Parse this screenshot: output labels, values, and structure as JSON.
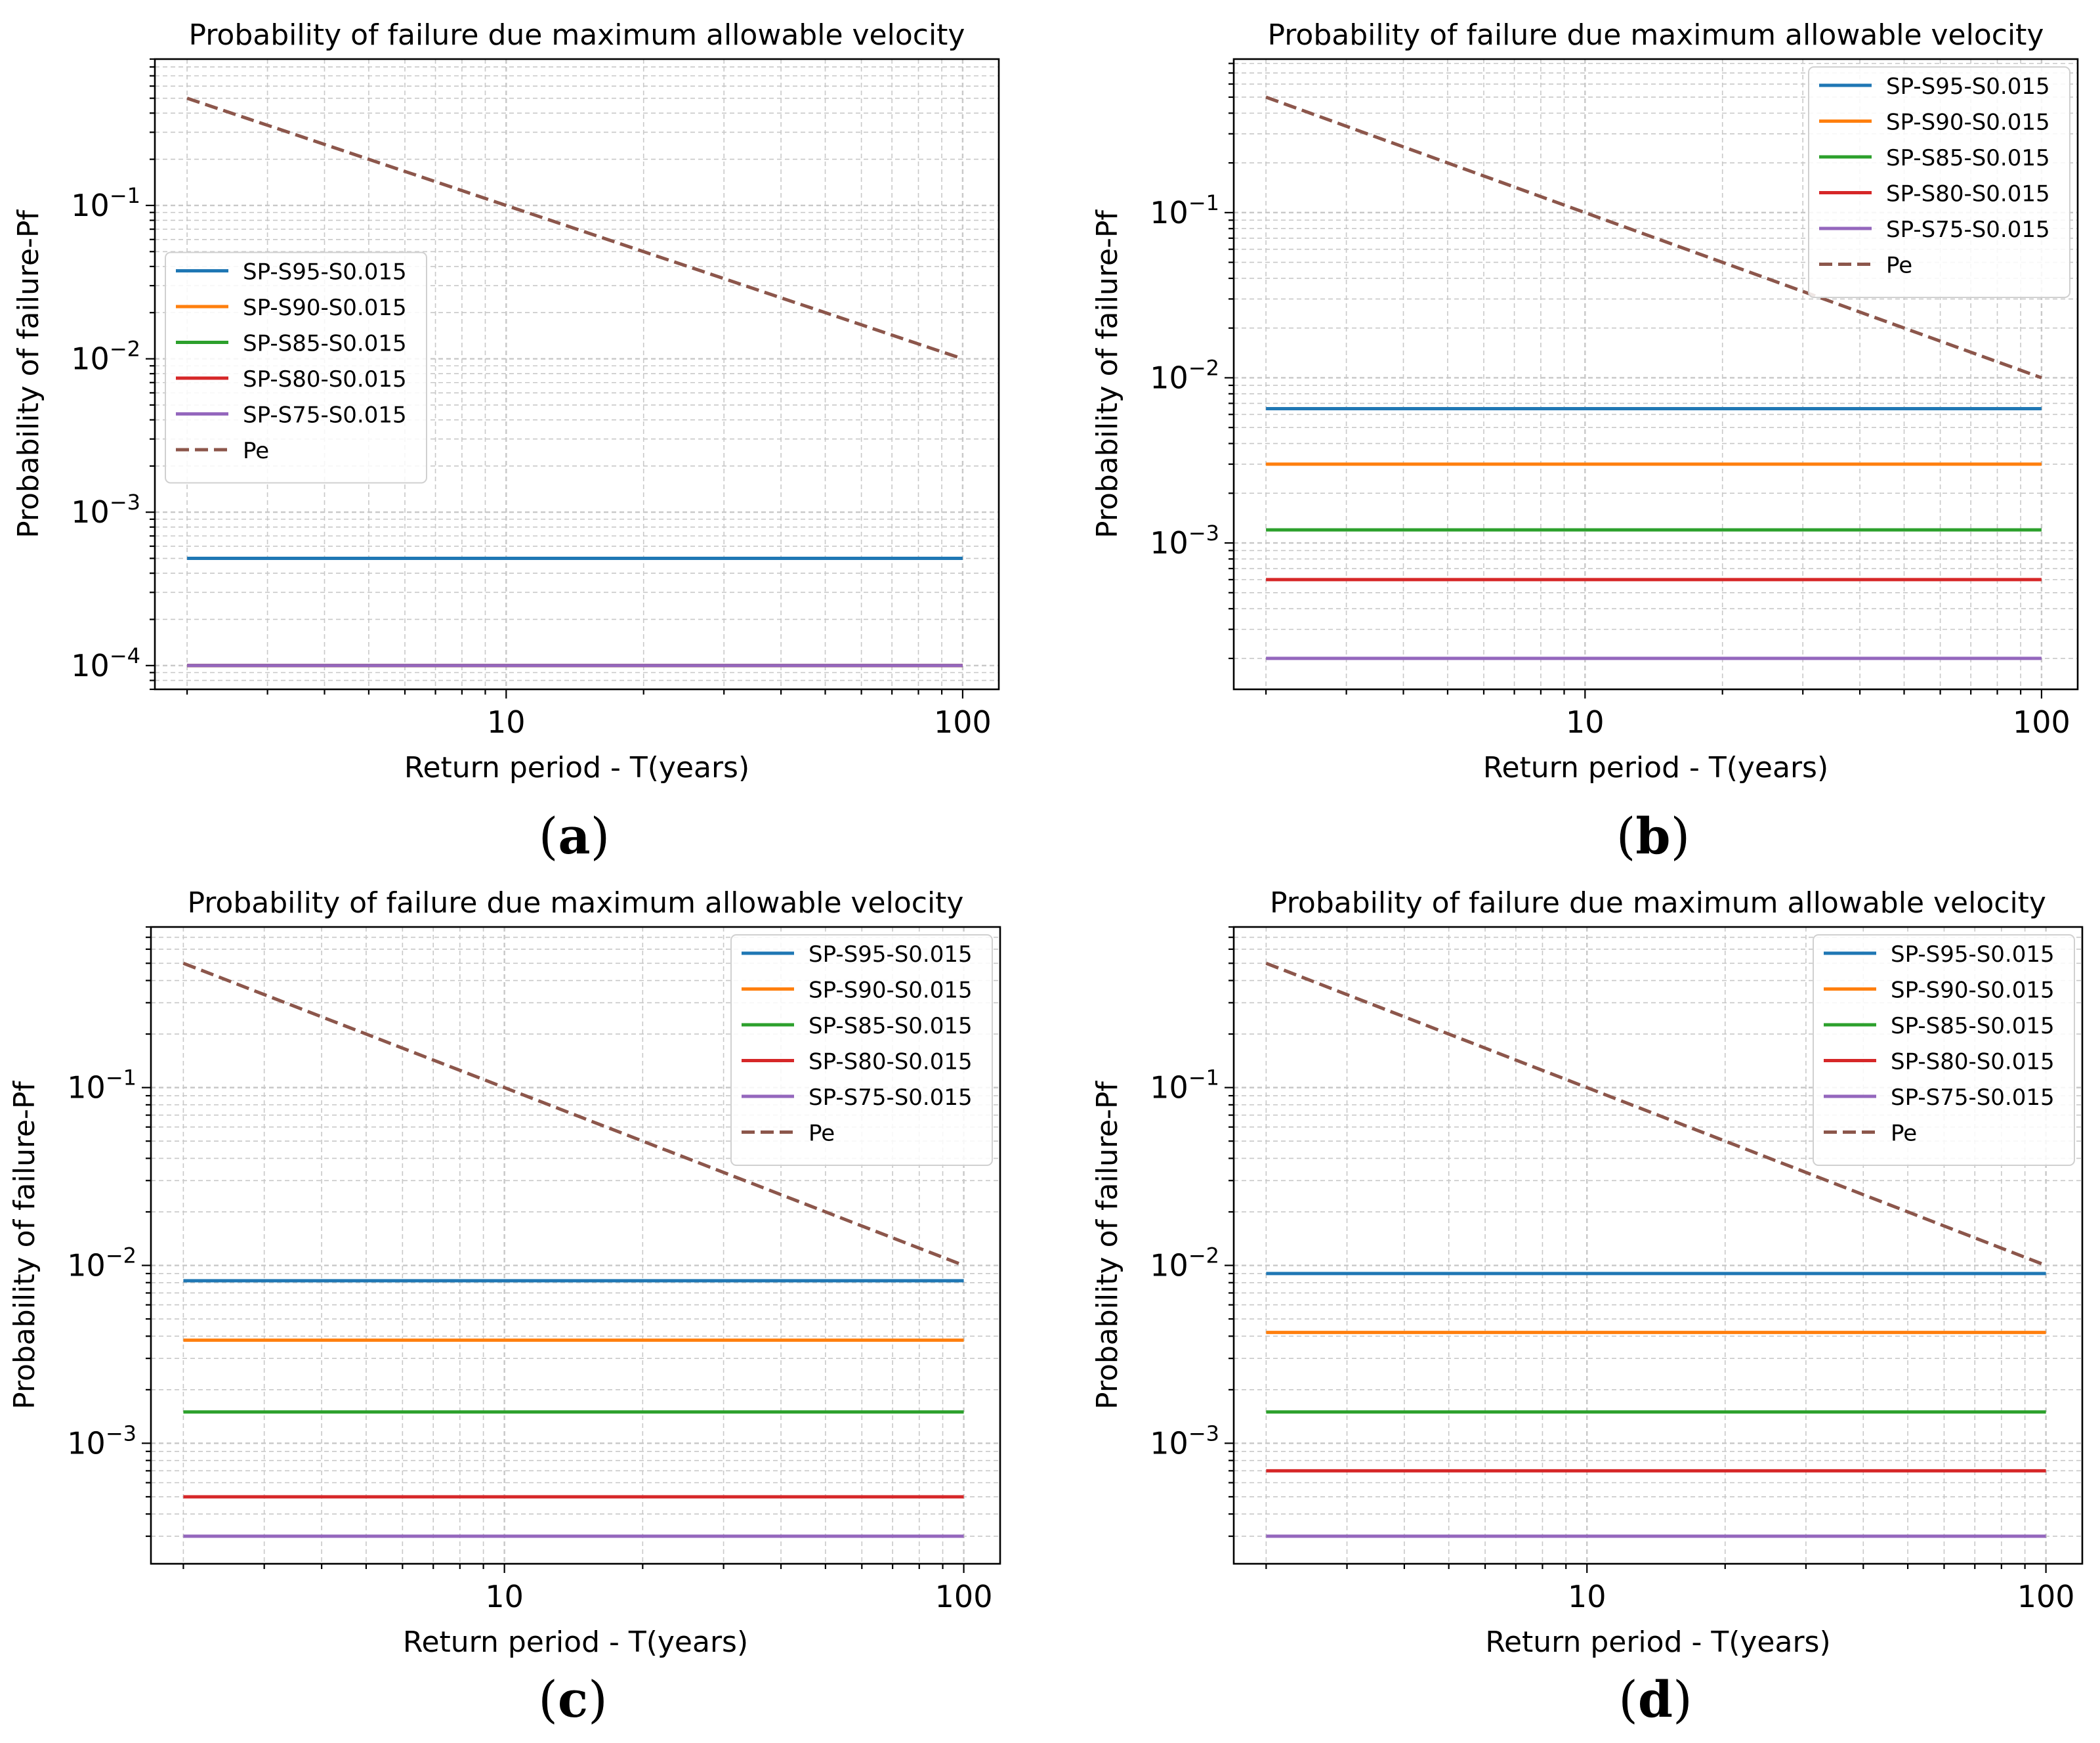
{
  "chart_data": [
    {
      "panel_label": "a",
      "type": "line",
      "title": "Probability of failure due maximum allowable velocity",
      "xlabel": "Return period - T(years)",
      "ylabel": "Probability of failure-Pf",
      "x_scale": "log",
      "y_scale": "log",
      "xlim": [
        1.7,
        120
      ],
      "ylim": [
        7e-05,
        0.9
      ],
      "x_ticks": [
        10,
        100
      ],
      "x_tick_labels": [
        "10",
        "100"
      ],
      "y_ticks": [
        0.0001,
        0.001,
        0.01,
        0.1
      ],
      "y_tick_labels": [
        {
          "base": "10",
          "exp": "−4"
        },
        {
          "base": "10",
          "exp": "−3"
        },
        {
          "base": "10",
          "exp": "−2"
        },
        {
          "base": "10",
          "exp": "−1"
        }
      ],
      "grid": true,
      "legend_position": "center-left",
      "x": [
        2,
        100
      ],
      "series": [
        {
          "name": "SP-S95-S0.015",
          "color": "#1f77b4",
          "dash": false,
          "values": [
            0.0005,
            0.0005
          ]
        },
        {
          "name": "SP-S90-S0.015",
          "color": "#ff7f0e",
          "dash": false,
          "values": [
            0.0001,
            0.0001
          ]
        },
        {
          "name": "SP-S85-S0.015",
          "color": "#2ca02c",
          "dash": false,
          "values": [
            0.0001,
            0.0001
          ]
        },
        {
          "name": "SP-S80-S0.015",
          "color": "#d62728",
          "dash": false,
          "values": [
            0.0001,
            0.0001
          ]
        },
        {
          "name": "SP-S75-S0.015",
          "color": "#9467bd",
          "dash": false,
          "values": [
            0.0001,
            0.0001
          ]
        },
        {
          "name": "Pe",
          "color": "#8c564b",
          "dash": true,
          "values": [
            0.5,
            0.01
          ]
        }
      ]
    },
    {
      "panel_label": "b",
      "type": "line",
      "title": "Probability of failure due maximum allowable velocity",
      "xlabel": "Return period - T(years)",
      "ylabel": "Probability of failure-Pf",
      "x_scale": "log",
      "y_scale": "log",
      "xlim": [
        1.7,
        120
      ],
      "ylim": [
        0.00013,
        0.85
      ],
      "x_ticks": [
        10,
        100
      ],
      "x_tick_labels": [
        "10",
        "100"
      ],
      "y_ticks": [
        0.001,
        0.01,
        0.1
      ],
      "y_tick_labels": [
        {
          "base": "10",
          "exp": "−3"
        },
        {
          "base": "10",
          "exp": "−2"
        },
        {
          "base": "10",
          "exp": "−1"
        }
      ],
      "grid": true,
      "legend_position": "top-right",
      "x": [
        2,
        100
      ],
      "series": [
        {
          "name": "SP-S95-S0.015",
          "color": "#1f77b4",
          "dash": false,
          "values": [
            0.0065,
            0.0065
          ]
        },
        {
          "name": "SP-S90-S0.015",
          "color": "#ff7f0e",
          "dash": false,
          "values": [
            0.003,
            0.003
          ]
        },
        {
          "name": "SP-S85-S0.015",
          "color": "#2ca02c",
          "dash": false,
          "values": [
            0.0012,
            0.0012
          ]
        },
        {
          "name": "SP-S80-S0.015",
          "color": "#d62728",
          "dash": false,
          "values": [
            0.0006,
            0.0006
          ]
        },
        {
          "name": "SP-S75-S0.015",
          "color": "#9467bd",
          "dash": false,
          "values": [
            0.0002,
            0.0002
          ]
        },
        {
          "name": "Pe",
          "color": "#8c564b",
          "dash": true,
          "values": [
            0.5,
            0.01
          ]
        }
      ]
    },
    {
      "panel_label": "c",
      "type": "line",
      "title": "Probability of failure due maximum allowable velocity",
      "xlabel": "Return period - T(years)",
      "ylabel": "Probability of failure-Pf",
      "x_scale": "log",
      "y_scale": "log",
      "xlim": [
        1.7,
        120
      ],
      "ylim": [
        0.00021,
        0.8
      ],
      "x_ticks": [
        10,
        100
      ],
      "x_tick_labels": [
        "10",
        "100"
      ],
      "y_ticks": [
        0.001,
        0.01,
        0.1
      ],
      "y_tick_labels": [
        {
          "base": "10",
          "exp": "−3"
        },
        {
          "base": "10",
          "exp": "−2"
        },
        {
          "base": "10",
          "exp": "−1"
        }
      ],
      "grid": true,
      "legend_position": "top-right",
      "x": [
        2,
        100
      ],
      "series": [
        {
          "name": "SP-S95-S0.015",
          "color": "#1f77b4",
          "dash": false,
          "values": [
            0.0082,
            0.0082
          ]
        },
        {
          "name": "SP-S90-S0.015",
          "color": "#ff7f0e",
          "dash": false,
          "values": [
            0.0038,
            0.0038
          ]
        },
        {
          "name": "SP-S85-S0.015",
          "color": "#2ca02c",
          "dash": false,
          "values": [
            0.0015,
            0.0015
          ]
        },
        {
          "name": "SP-S80-S0.015",
          "color": "#d62728",
          "dash": false,
          "values": [
            0.0005,
            0.0005
          ]
        },
        {
          "name": "SP-S75-S0.015",
          "color": "#9467bd",
          "dash": false,
          "values": [
            0.0003,
            0.0003
          ]
        },
        {
          "name": "Pe",
          "color": "#8c564b",
          "dash": true,
          "values": [
            0.5,
            0.01
          ]
        }
      ]
    },
    {
      "panel_label": "d",
      "type": "line",
      "title": "Probability of failure due maximum allowable velocity",
      "xlabel": "Return period - T(years)",
      "ylabel": "Probability of failure-Pf",
      "x_scale": "log",
      "y_scale": "log",
      "xlim": [
        1.7,
        120
      ],
      "ylim": [
        0.00021,
        0.8
      ],
      "x_ticks": [
        10,
        100
      ],
      "x_tick_labels": [
        "10",
        "100"
      ],
      "y_ticks": [
        0.001,
        0.01,
        0.1
      ],
      "y_tick_labels": [
        {
          "base": "10",
          "exp": "−3"
        },
        {
          "base": "10",
          "exp": "−2"
        },
        {
          "base": "10",
          "exp": "−1"
        }
      ],
      "grid": true,
      "legend_position": "top-right",
      "x": [
        2,
        100
      ],
      "series": [
        {
          "name": "SP-S95-S0.015",
          "color": "#1f77b4",
          "dash": false,
          "values": [
            0.009,
            0.009
          ]
        },
        {
          "name": "SP-S90-S0.015",
          "color": "#ff7f0e",
          "dash": false,
          "values": [
            0.0042,
            0.0042
          ]
        },
        {
          "name": "SP-S85-S0.015",
          "color": "#2ca02c",
          "dash": false,
          "values": [
            0.0015,
            0.0015
          ]
        },
        {
          "name": "SP-S80-S0.015",
          "color": "#d62728",
          "dash": false,
          "values": [
            0.0007,
            0.0007
          ]
        },
        {
          "name": "SP-S75-S0.015",
          "color": "#9467bd",
          "dash": false,
          "values": [
            0.0003,
            0.0003
          ]
        },
        {
          "name": "Pe",
          "color": "#8c564b",
          "dash": true,
          "values": [
            0.5,
            0.01
          ]
        }
      ]
    }
  ]
}
